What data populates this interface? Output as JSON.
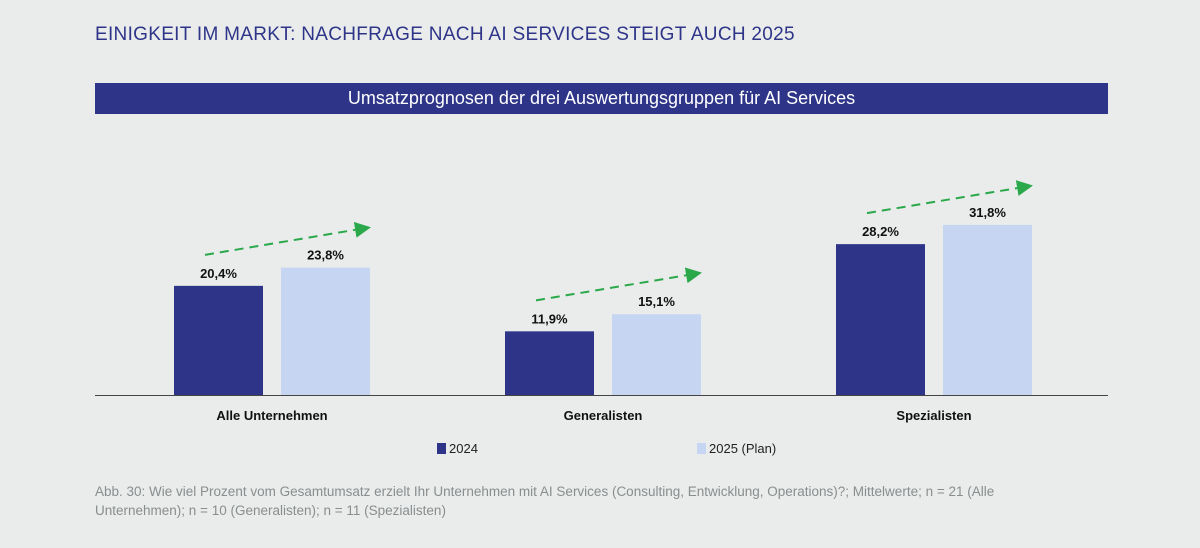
{
  "title": "EINIGKEIT IM MARKT: NACHFRAGE NACH AI SERVICES STEIGT AUCH 2025",
  "chart_data": {
    "type": "bar",
    "title": "Umsatzprognosen der drei Auswertungsgruppen für AI Services",
    "categories": [
      "Alle Unternehmen",
      "Generalisten",
      "Spezialisten"
    ],
    "series": [
      {
        "name": "2024",
        "values": [
          20.4,
          11.9,
          28.2
        ],
        "labels": [
          "20,4%",
          "11,9%",
          "28,2%"
        ],
        "color": "#2e3589"
      },
      {
        "name": "2025 (Plan)",
        "values": [
          23.8,
          15.1,
          31.8
        ],
        "labels": [
          "23,8%",
          "15,1%",
          "31,8%"
        ],
        "color": "#c6d5f1"
      }
    ],
    "ylim": [
      0,
      35
    ],
    "grid": false,
    "legend": "bottom",
    "annotations": "green dashed upward trend arrows per group",
    "trend_color": "#2aa84a"
  },
  "caption": "Abb. 30: Wie viel Prozent vom Gesamtumsatz erzielt Ihr Unternehmen mit AI Services (Consulting, Entwicklung, Operations)?; Mittelwerte; n = 21 (Alle Unternehmen); n = 10 (Generalisten); n = 11 (Spezialisten)"
}
